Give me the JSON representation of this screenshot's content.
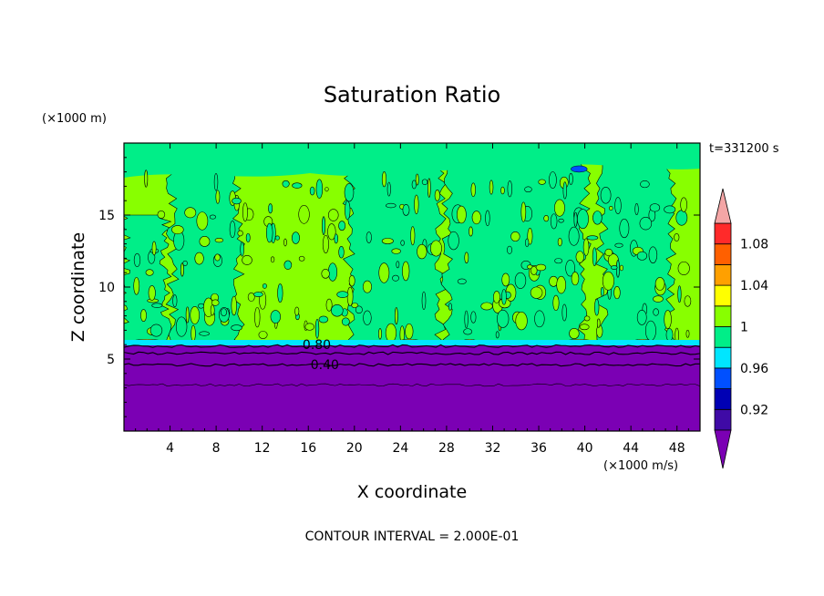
{
  "chart_data": {
    "type": "heatmap",
    "title": "Saturation Ratio",
    "xlabel": "X coordinate",
    "ylabel": "Z coordinate",
    "x_units": "(×1000 m/s)",
    "y_units": "(×1000 m)",
    "time_label": "t=331200 s",
    "footer": "CONTOUR INTERVAL = 2.000E-01",
    "xlim": [
      0,
      50
    ],
    "ylim": [
      0,
      20
    ],
    "x_ticks": [
      4,
      8,
      12,
      16,
      20,
      24,
      28,
      32,
      36,
      40,
      44,
      48
    ],
    "y_ticks": [
      5,
      10,
      15
    ],
    "contour_labels": [
      {
        "text": "0.80",
        "x": 15.5,
        "y": 5.7
      },
      {
        "text": "0.40",
        "x": 16.2,
        "y": 4.3
      }
    ],
    "colorbar": {
      "levels": [
        0.9,
        0.92,
        0.94,
        0.96,
        0.98,
        1.0,
        1.02,
        1.04,
        1.06,
        1.08,
        1.1
      ],
      "tick_labels": [
        "0.92",
        "0.96",
        "1",
        "1.04",
        "1.08"
      ],
      "tick_values": [
        0.92,
        0.96,
        1.0,
        1.04,
        1.08
      ],
      "colors": [
        "#3f0aa6",
        "#0000b4",
        "#0050ff",
        "#00e6ff",
        "#00ee88",
        "#88ff00",
        "#ffff00",
        "#ffa000",
        "#ff6000",
        "#ff2a2a"
      ],
      "under_color": "#7b00b4",
      "over_color": "#f4a6a6"
    },
    "regions": {
      "dry_layer_color": "#7b00b4",
      "dry_layer_top": 6.0,
      "upper_fill_a": "#88ff00",
      "upper_fill_b": "#00ee88"
    }
  }
}
